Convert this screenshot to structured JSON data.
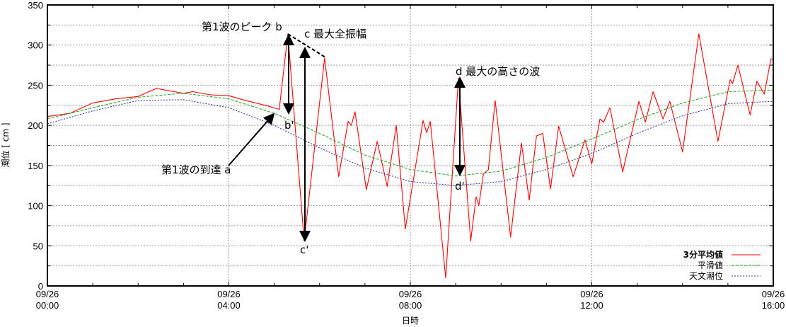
{
  "chart_data": {
    "type": "line",
    "title": "",
    "xlabel": "日時",
    "ylabel": "潮位 [ cm ]",
    "xlim_hours_label": [
      "09/26 00:00",
      "09/26 16:00"
    ],
    "ylim": [
      0,
      350
    ],
    "yticks": [
      0,
      50,
      100,
      150,
      200,
      250,
      300,
      350
    ],
    "xticks": [
      {
        "hour": 0,
        "date": "09/26",
        "time": "00:00"
      },
      {
        "hour": 4,
        "date": "09/26",
        "time": "04:00"
      },
      {
        "hour": 8,
        "date": "09/26",
        "time": "08:00"
      },
      {
        "hour": 12,
        "date": "09/26",
        "time": "12:00"
      },
      {
        "hour": 16,
        "date": "09/26",
        "time": "16:00"
      }
    ],
    "grid": true,
    "legend_placement": "bottom-right",
    "series": [
      {
        "name": "3分平均値",
        "color": "#ff0000",
        "style": "solid",
        "points": [
          [
            0,
            211
          ],
          [
            0.5,
            215
          ],
          [
            1,
            228
          ],
          [
            1.5,
            233
          ],
          [
            2,
            236
          ],
          [
            2.4,
            246
          ],
          [
            3,
            240
          ],
          [
            3.2,
            242
          ],
          [
            3.6,
            238
          ],
          [
            4,
            237
          ],
          [
            4.3,
            232
          ],
          [
            4.8,
            225
          ],
          [
            5.11,
            220
          ],
          [
            5.3,
            314
          ],
          [
            5.66,
            56
          ],
          [
            6.11,
            284
          ],
          [
            6.42,
            136
          ],
          [
            6.63,
            205
          ],
          [
            6.7,
            200
          ],
          [
            6.78,
            217
          ],
          [
            7.03,
            120
          ],
          [
            7.27,
            180
          ],
          [
            7.49,
            124
          ],
          [
            7.69,
            200
          ],
          [
            7.89,
            71
          ],
          [
            8.28,
            206
          ],
          [
            8.36,
            191
          ],
          [
            8.44,
            205
          ],
          [
            8.78,
            10
          ],
          [
            9.06,
            259
          ],
          [
            9.33,
            56
          ],
          [
            9.45,
            111
          ],
          [
            9.51,
            100
          ],
          [
            9.61,
            139
          ],
          [
            9.72,
            145
          ],
          [
            9.87,
            231
          ],
          [
            10.21,
            61
          ],
          [
            10.45,
            178
          ],
          [
            10.62,
            107
          ],
          [
            10.78,
            187
          ],
          [
            10.92,
            190
          ],
          [
            11.09,
            121
          ],
          [
            11.27,
            199
          ],
          [
            11.59,
            136
          ],
          [
            11.85,
            182
          ],
          [
            12.0,
            152
          ],
          [
            12.18,
            208
          ],
          [
            12.26,
            204
          ],
          [
            12.4,
            222
          ],
          [
            12.68,
            142
          ],
          [
            13.04,
            230
          ],
          [
            13.18,
            204
          ],
          [
            13.35,
            242
          ],
          [
            13.57,
            208
          ],
          [
            13.72,
            230
          ],
          [
            14.0,
            167
          ],
          [
            14.36,
            314
          ],
          [
            14.78,
            180
          ],
          [
            15.05,
            257
          ],
          [
            15.1,
            252
          ],
          [
            15.22,
            275
          ],
          [
            15.49,
            213
          ],
          [
            15.64,
            255
          ],
          [
            15.8,
            239
          ],
          [
            15.95,
            283
          ],
          [
            16,
            282
          ]
        ]
      },
      {
        "name": "平滑値",
        "color": "#33aa33",
        "style": "dashed",
        "points": [
          [
            0,
            208
          ],
          [
            1,
            222
          ],
          [
            2,
            235
          ],
          [
            3,
            240
          ],
          [
            4,
            233
          ],
          [
            5,
            215
          ],
          [
            6,
            190
          ],
          [
            7,
            163
          ],
          [
            8,
            145
          ],
          [
            9,
            137
          ],
          [
            10,
            143
          ],
          [
            11,
            160
          ],
          [
            12,
            183
          ],
          [
            13,
            207
          ],
          [
            14,
            228
          ],
          [
            15,
            242
          ],
          [
            16,
            244
          ]
        ]
      },
      {
        "name": "天文潮位",
        "color": "#3333bb",
        "style": "dotted",
        "points": [
          [
            0,
            202
          ],
          [
            1,
            218
          ],
          [
            2,
            231
          ],
          [
            3,
            232
          ],
          [
            4,
            222
          ],
          [
            5,
            200
          ],
          [
            6,
            172
          ],
          [
            7,
            147
          ],
          [
            8,
            130
          ],
          [
            9,
            125
          ],
          [
            10,
            130
          ],
          [
            11,
            145
          ],
          [
            12,
            165
          ],
          [
            13,
            190
          ],
          [
            14,
            212
          ],
          [
            15,
            227
          ],
          [
            16,
            230
          ]
        ]
      }
    ],
    "annotations": {
      "b": "第1波のピーク b",
      "c": "c 最大全振幅",
      "d": "d 最大の高さの波",
      "a": "第1波の到達 a",
      "b_prime": "b'",
      "c_prime": "c'",
      "d_prime": "d'"
    }
  }
}
